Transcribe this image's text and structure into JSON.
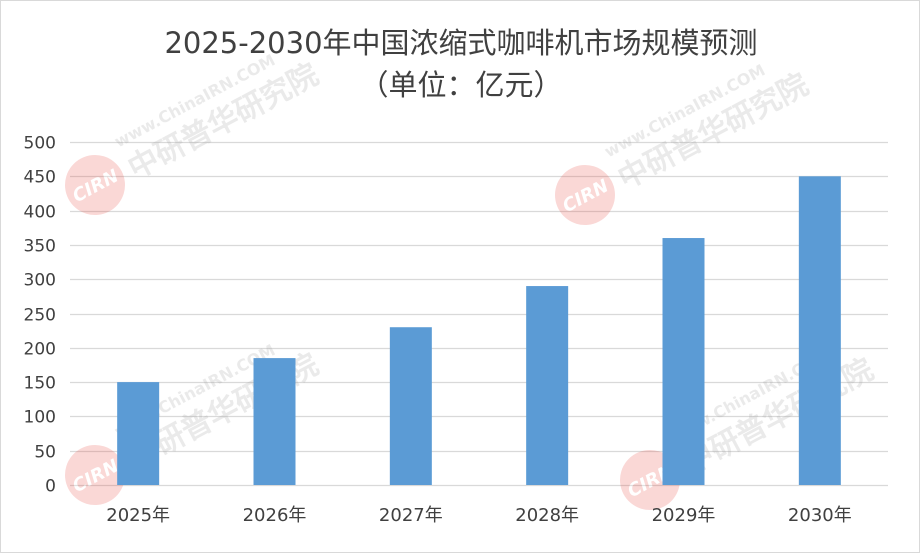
{
  "chart_data": {
    "type": "bar",
    "title": "2025-2030年中国浓缩式咖啡机市场规模预测",
    "subtitle": "（单位：亿元）",
    "categories": [
      "2025年",
      "2026年",
      "2027年",
      "2028年",
      "2029年",
      "2030年"
    ],
    "values": [
      150,
      185,
      230,
      290,
      360,
      450
    ],
    "ylim": [
      0,
      500
    ],
    "yticks": [
      0,
      50,
      100,
      150,
      200,
      250,
      300,
      350,
      400,
      450,
      500
    ],
    "grid": true,
    "legend": "none",
    "bar_color": "#5b9bd5",
    "gridline_color": "#d9d9d9",
    "text_color": "#404040"
  },
  "watermark": {
    "logo_text": "CIRN",
    "name": "中研普华研究院",
    "url": "www.ChinaIRN.COM",
    "logo_color": "#e8413a",
    "text_color": "#9a9a9a"
  }
}
